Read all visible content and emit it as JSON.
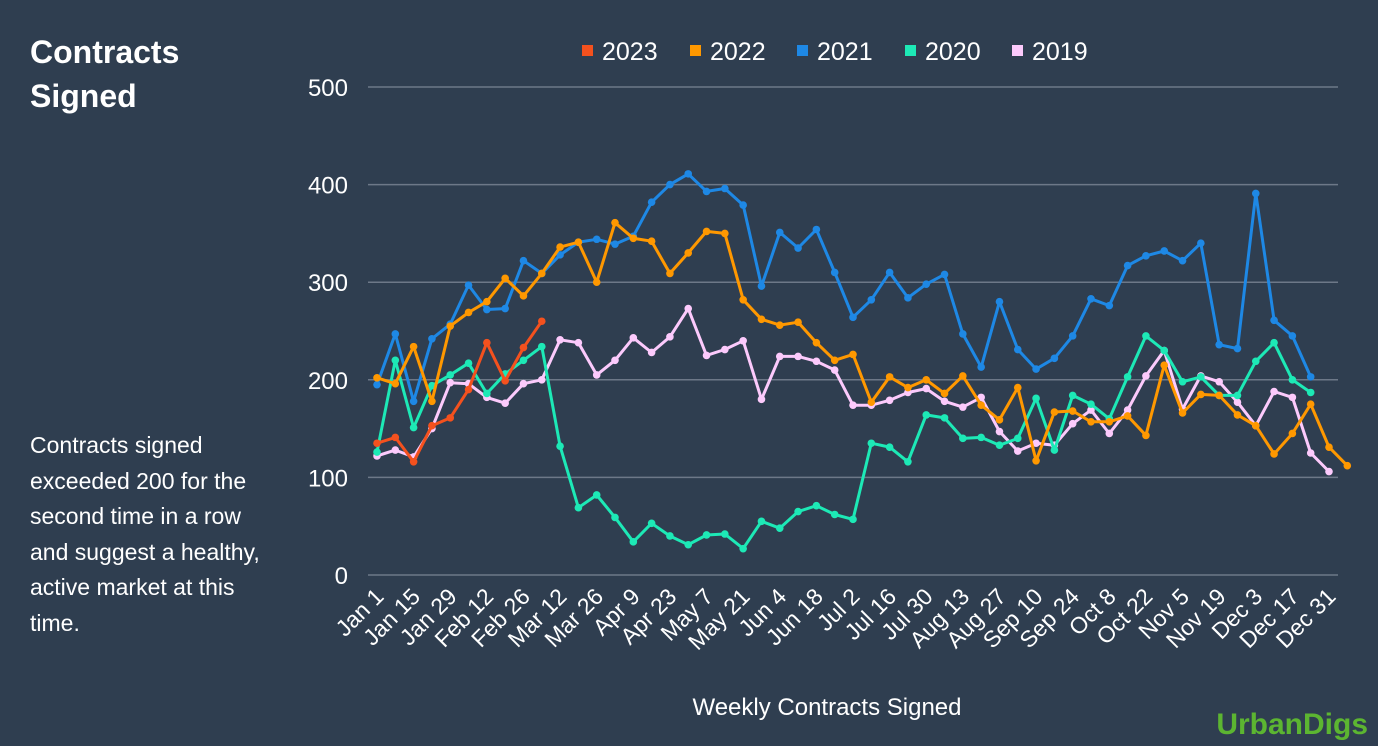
{
  "title": "Contracts Signed",
  "note": "Contracts signed exceeded 200 for the second time in a row and suggest a healthy, active market at this time.",
  "brand": "UrbanDigs",
  "colors": {
    "background": "#2f3e50",
    "grid": "#6d7888",
    "text": "#ffffff",
    "brand": "#5cb531"
  },
  "chart_data": {
    "type": "line",
    "title": "",
    "xlabel": "Weekly Contracts Signed",
    "ylabel": "",
    "ylim": [
      0,
      500
    ],
    "yticks": [
      0,
      100,
      200,
      300,
      400,
      500
    ],
    "grid": true,
    "legend_position": "top",
    "x_tick_labels": [
      "Jan 1",
      "Jan 15",
      "Jan 29",
      "Feb 12",
      "Feb 26",
      "Mar 12",
      "Mar 26",
      "Apr 9",
      "Apr 23",
      "May 7",
      "May 21",
      "Jun 4",
      "Jun 18",
      "Jul 2",
      "Jul 16",
      "Jul 30",
      "Aug 13",
      "Aug 27",
      "Sep 10",
      "Sep 24",
      "Oct 8",
      "Oct 22",
      "Nov 5",
      "Nov 19",
      "Dec 3",
      "Dec 17",
      "Dec 31"
    ],
    "series": [
      {
        "name": "2023",
        "color": "#f4511e",
        "values": [
          135,
          141,
          116,
          153,
          161,
          190,
          238,
          199,
          233,
          260
        ]
      },
      {
        "name": "2022",
        "color": "#ff9800",
        "values": [
          202,
          196,
          234,
          178,
          255,
          269,
          280,
          304,
          286,
          309,
          336,
          341,
          300,
          361,
          345,
          342,
          309,
          330,
          352,
          350,
          282,
          262,
          256,
          259,
          238,
          220,
          226,
          177,
          203,
          192,
          200,
          186,
          204,
          174,
          159,
          192,
          117,
          167,
          168,
          157,
          157,
          163,
          143,
          215,
          166,
          185,
          184,
          164,
          153,
          124,
          145,
          175,
          131,
          112
        ]
      },
      {
        "name": "2021",
        "color": "#1e88e5",
        "values": [
          195,
          247,
          178,
          242,
          257,
          297,
          272,
          273,
          322,
          309,
          328,
          341,
          344,
          339,
          347,
          382,
          400,
          411,
          393,
          396,
          379,
          296,
          351,
          335,
          354,
          310,
          264,
          282,
          310,
          284,
          298,
          308,
          247,
          213,
          280,
          231,
          211,
          222,
          245,
          283,
          276,
          317,
          327,
          332,
          322,
          340,
          236,
          232,
          391,
          261,
          245,
          203
        ]
      },
      {
        "name": "2020",
        "color": "#1de9b6",
        "values": [
          126,
          220,
          151,
          194,
          205,
          217,
          186,
          206,
          220,
          234,
          132,
          69,
          82,
          59,
          34,
          53,
          40,
          31,
          41,
          42,
          27,
          55,
          48,
          65,
          71,
          62,
          57,
          135,
          131,
          116,
          164,
          161,
          140,
          141,
          133,
          140,
          181,
          128,
          184,
          175,
          160,
          203,
          245,
          230,
          198,
          203,
          184,
          184,
          219,
          238,
          200,
          187
        ]
      },
      {
        "name": "2019",
        "color": "#fccafc",
        "values": [
          122,
          128,
          121,
          150,
          197,
          196,
          182,
          176,
          196,
          200,
          241,
          238,
          205,
          220,
          243,
          228,
          244,
          273,
          225,
          231,
          240,
          180,
          224,
          224,
          219,
          210,
          174,
          174,
          179,
          187,
          191,
          178,
          172,
          182,
          147,
          127,
          135,
          133,
          155,
          169,
          145,
          169,
          204,
          230,
          170,
          204,
          198,
          177,
          153,
          188,
          182,
          125,
          106
        ]
      }
    ]
  }
}
